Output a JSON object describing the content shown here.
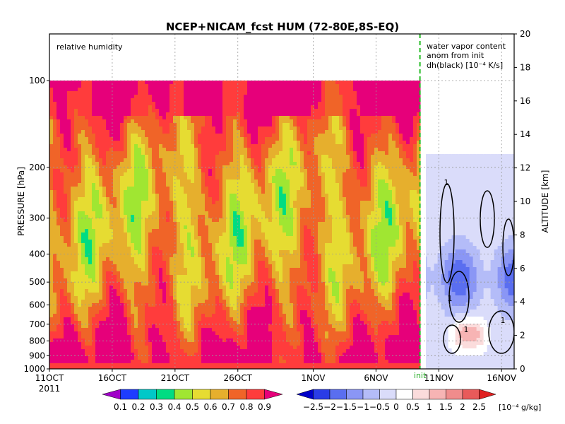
{
  "chart_data": {
    "type": "heatmap",
    "title": "NCEP+NICAM_fcst HUM (72-80E,8S-EQ)",
    "ylabel": "PRESSURE [hPa]",
    "y2label": "ALTITUDE [km]",
    "panel_left_label": "relative humidity",
    "panel_right_label": [
      "water vapor content",
      "anom from init",
      "dh(black) [10⁻⁴ K/s]"
    ],
    "x_ticks": [
      {
        "label": "11OCT",
        "day": 0
      },
      {
        "label": "16OCT",
        "day": 5
      },
      {
        "label": "21OCT",
        "day": 10
      },
      {
        "label": "26OCT",
        "day": 15
      },
      {
        "label": "1NOV",
        "day": 21
      },
      {
        "label": "6NOV",
        "day": 26
      },
      {
        "label": "11NOV",
        "day": 31
      },
      {
        "label": "16NOV",
        "day": 36
      }
    ],
    "year_label": "2011",
    "init_marker": {
      "label": "init",
      "day": 29.5
    },
    "xlim_days": [
      0,
      37
    ],
    "pressure_ticks": [
      100,
      200,
      300,
      400,
      500,
      600,
      700,
      800,
      900,
      1000
    ],
    "pressure_range": [
      1000,
      100
    ],
    "altitude_ticks": [
      0,
      2,
      4,
      6,
      8,
      10,
      12,
      14,
      16,
      18,
      20
    ],
    "altitude_range": [
      0,
      20
    ],
    "contour_label": "1",
    "rh_colorbar": {
      "labels": [
        "0.1",
        "0.2",
        "0.3",
        "0.4",
        "0.5",
        "0.6",
        "0.7",
        "0.8",
        "0.9"
      ],
      "colors": [
        "#a000c8",
        "#1e3cff",
        "#00c8c8",
        "#00dc82",
        "#a0e632",
        "#e6dc32",
        "#e6af2d",
        "#f06428",
        "#ff3c3c",
        "#e6007a"
      ]
    },
    "anom_colorbar": {
      "labels": [
        "−2.5",
        "−2",
        "−1.5",
        "−1",
        "−0.5",
        "0",
        "0.5",
        "1",
        "1.5",
        "2",
        "2.5"
      ],
      "unit": "[10⁻⁴ g/kg]",
      "colors": [
        "#0000c8",
        "#2a3ce6",
        "#5a6ef0",
        "#8a96f5",
        "#b4bcf8",
        "#dadcfa",
        "#ffffff",
        "#fbdcdc",
        "#f7b4b4",
        "#f08c8c",
        "#e85a5a",
        "#e02020"
      ]
    }
  }
}
